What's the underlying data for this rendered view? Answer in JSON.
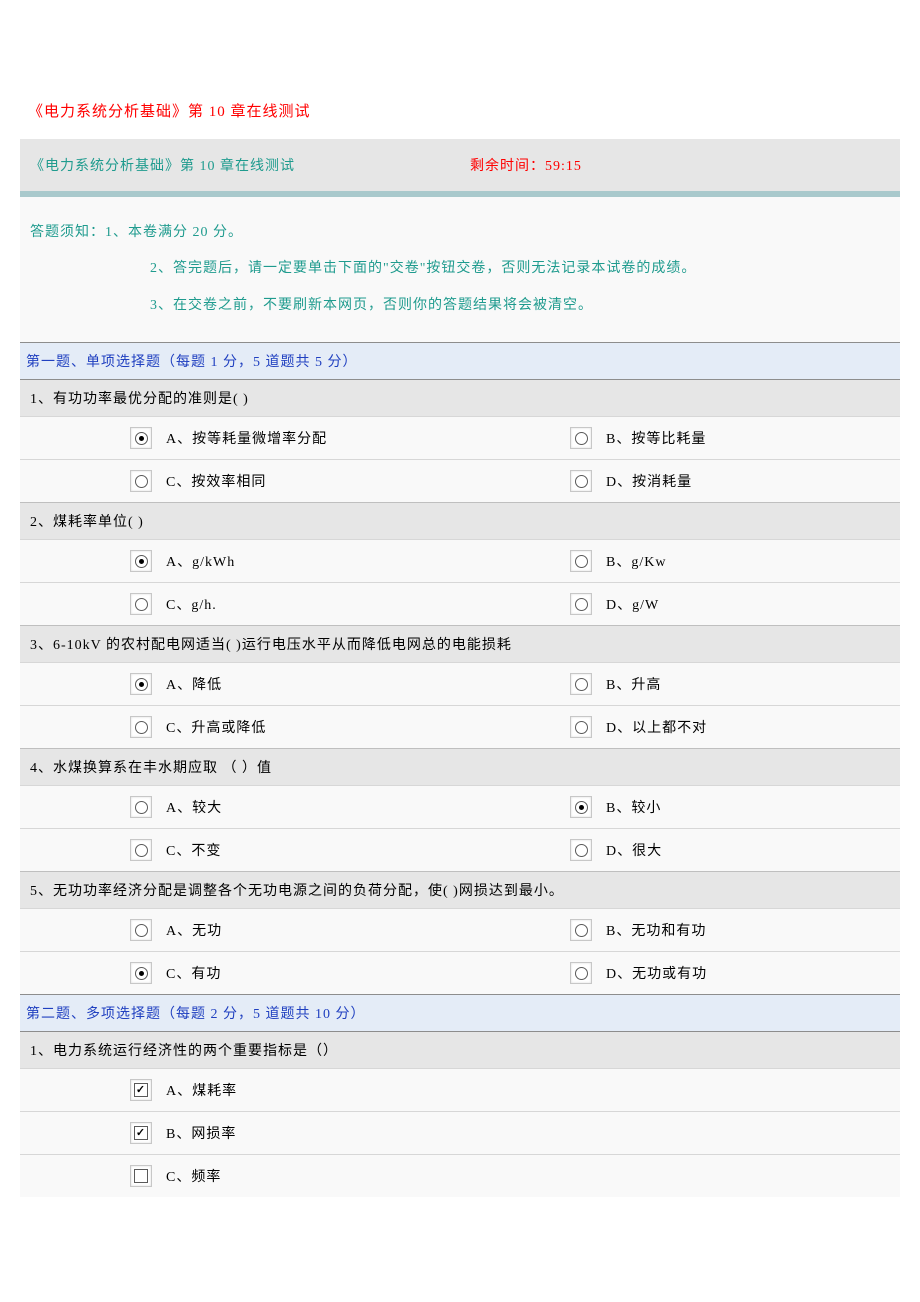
{
  "colors": {
    "title": "#ff0000",
    "teal_text": "#1f9b8e",
    "teal_bar": "#a9c9cc",
    "section_bg": "#e4ecf7",
    "section_text": "#2040c0",
    "grey_bg": "#e6e6e6",
    "light_bg": "#f9f9f9",
    "border": "#8d8d8d"
  },
  "doc_title": "《电力系统分析基础》第 10 章在线测试",
  "header": {
    "left": "《电力系统分析基础》第 10 章在线测试",
    "right": "剩余时间：59:15"
  },
  "instructions": {
    "line1": "答题须知：1、本卷满分 20 分。",
    "line2": "2、答完题后，请一定要单击下面的\"交卷\"按钮交卷，否则无法记录本试卷的成绩。",
    "line3": "3、在交卷之前，不要刷新本网页，否则你的答题结果将会被清空。"
  },
  "section1": {
    "title": "第一题、单项选择题（每题 1 分，5 道题共 5 分）",
    "questions": [
      {
        "stem": "1、有功功率最优分配的准则是( )",
        "options": [
          {
            "label": "A、按等耗量微增率分配",
            "selected": true
          },
          {
            "label": "B、按等比耗量",
            "selected": false
          },
          {
            "label": "C、按效率相同",
            "selected": false
          },
          {
            "label": "D、按消耗量",
            "selected": false
          }
        ]
      },
      {
        "stem": "2、煤耗率单位( )",
        "options": [
          {
            "label": "A、g/kWh",
            "selected": true
          },
          {
            "label": "B、g/Kw",
            "selected": false
          },
          {
            "label": "C、g/h.",
            "selected": false
          },
          {
            "label": "D、g/W",
            "selected": false
          }
        ]
      },
      {
        "stem": "3、6-10kV 的农村配电网适当( )运行电压水平从而降低电网总的电能损耗",
        "options": [
          {
            "label": "A、降低",
            "selected": true
          },
          {
            "label": "B、升高",
            "selected": false
          },
          {
            "label": "C、升高或降低",
            "selected": false
          },
          {
            "label": "D、以上都不对",
            "selected": false
          }
        ]
      },
      {
        "stem": "4、水煤换算系在丰水期应取 （ ）值",
        "options": [
          {
            "label": "A、较大",
            "selected": false
          },
          {
            "label": "B、较小",
            "selected": true
          },
          {
            "label": "C、不变",
            "selected": false
          },
          {
            "label": "D、很大",
            "selected": false
          }
        ]
      },
      {
        "stem": "5、无功功率经济分配是调整各个无功电源之间的负荷分配，使( )网损达到最小。",
        "options": [
          {
            "label": "A、无功",
            "selected": false
          },
          {
            "label": "B、无功和有功",
            "selected": false
          },
          {
            "label": "C、有功",
            "selected": true
          },
          {
            "label": "D、无功或有功",
            "selected": false
          }
        ]
      }
    ]
  },
  "section2": {
    "title": "第二题、多项选择题（每题 2 分，5 道题共 10 分）",
    "questions": [
      {
        "stem": "1、电力系统运行经济性的两个重要指标是（）",
        "options": [
          {
            "label": "A、煤耗率",
            "selected": true
          },
          {
            "label": "B、网损率",
            "selected": true
          },
          {
            "label": "C、频率",
            "selected": false
          }
        ]
      }
    ]
  }
}
